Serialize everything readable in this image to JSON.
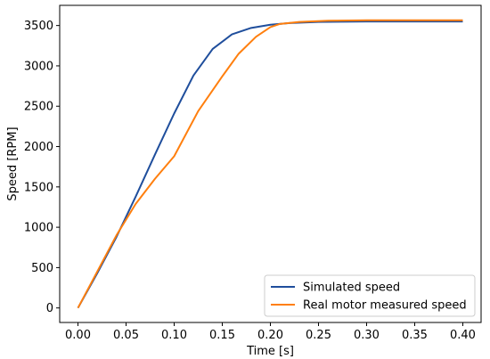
{
  "chart_data": {
    "type": "line",
    "title": "",
    "xlabel": "Time [s]",
    "ylabel": "Speed [RPM]",
    "xlim": [
      -0.019,
      0.419
    ],
    "ylim": [
      -180,
      3750
    ],
    "xticks": [
      "0.00",
      "0.05",
      "0.10",
      "0.15",
      "0.20",
      "0.25",
      "0.30",
      "0.35",
      "0.40"
    ],
    "yticks": [
      "0",
      "500",
      "1000",
      "1500",
      "2000",
      "2500",
      "3000",
      "3500"
    ],
    "grid": false,
    "legend_position": "lower-right",
    "series": [
      {
        "name": "Simulated speed",
        "color": "#1f4e9c",
        "x": [
          0.0,
          0.02,
          0.04,
          0.06,
          0.08,
          0.1,
          0.12,
          0.14,
          0.16,
          0.18,
          0.2,
          0.22,
          0.25,
          0.3,
          0.35,
          0.4
        ],
        "y": [
          0,
          430,
          880,
          1380,
          1900,
          2410,
          2880,
          3210,
          3390,
          3470,
          3510,
          3530,
          3545,
          3550,
          3550,
          3550
        ]
      },
      {
        "name": "Real motor measured speed",
        "color": "#ff7f0e",
        "x": [
          0.0,
          0.02,
          0.04,
          0.06,
          0.08,
          0.1,
          0.125,
          0.15,
          0.167,
          0.185,
          0.2,
          0.21,
          0.23,
          0.26,
          0.3,
          0.35,
          0.4
        ],
        "y": [
          0,
          450,
          900,
          1290,
          1600,
          1880,
          2440,
          2870,
          3150,
          3360,
          3480,
          3520,
          3545,
          3560,
          3565,
          3565,
          3565
        ]
      }
    ]
  }
}
